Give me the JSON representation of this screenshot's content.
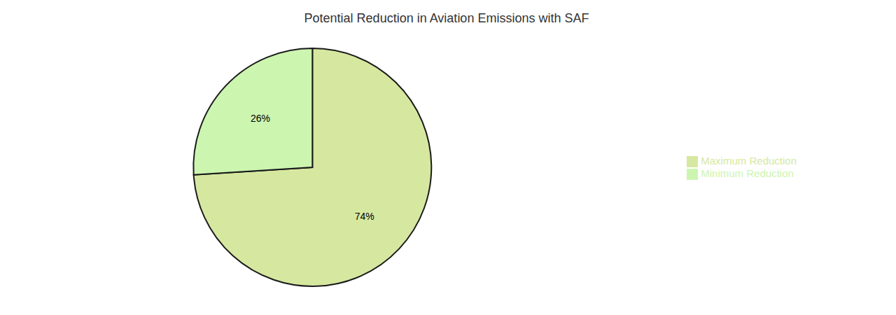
{
  "chart_data": {
    "type": "pie",
    "title": "Potential Reduction in Aviation Emissions with SAF",
    "categories": [
      "Maximum Reduction",
      "Minimum Reduction"
    ],
    "values": [
      74,
      26
    ],
    "value_labels": [
      "74%",
      "26%"
    ],
    "colors": [
      "#d6e8a0",
      "#ccf5b0"
    ],
    "data_labels": true,
    "legend": "right"
  }
}
